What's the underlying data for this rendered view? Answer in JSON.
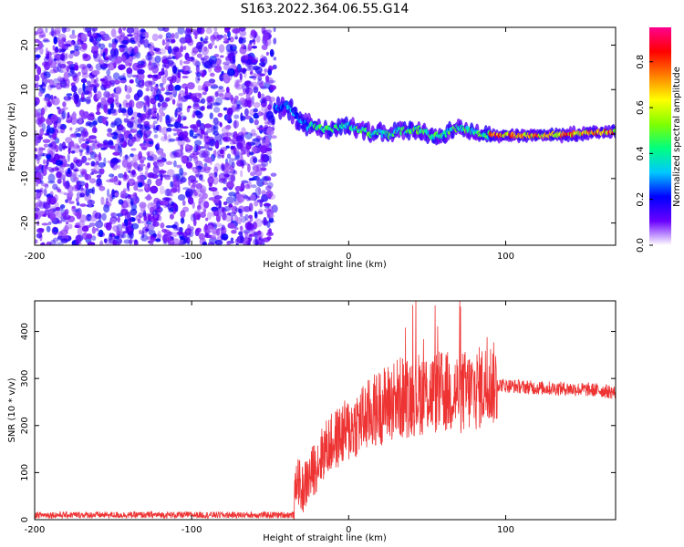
{
  "figure": {
    "title": "S163.2022.364.06.55.G14"
  },
  "chart_data": [
    {
      "type": "heatmap",
      "xlabel": "Height of straight line (km)",
      "ylabel": "Frequency (Hz)",
      "xlim": [
        -200,
        170
      ],
      "ylim": [
        -25,
        24
      ],
      "xticks": [
        -200,
        -100,
        0,
        100
      ],
      "yticks": [
        -20,
        -10,
        0,
        10,
        20
      ],
      "grid": false,
      "colorbar": {
        "label": "Normalized spectral amplitude",
        "range": [
          0,
          0.95
        ],
        "ticks": [
          0.0,
          0.2,
          0.4,
          0.6,
          0.8
        ],
        "colormap": [
          "#ffffff",
          "#6a00ff",
          "#0000ff",
          "#00c8ff",
          "#00ff80",
          "#80ff00",
          "#ffff00",
          "#ff8000",
          "#ff0000",
          "#ff0090"
        ]
      },
      "description_regions": {
        "noise_region_x": [
          -200,
          -47
        ],
        "signal_track": [
          [
            -47,
            5.5
          ],
          [
            -43,
            6.0
          ],
          [
            -39,
            6.5
          ],
          [
            -36,
            5.0
          ],
          [
            -33,
            3.5
          ],
          [
            -30,
            2.5
          ],
          [
            -26,
            2.0
          ],
          [
            -20,
            1.5
          ],
          [
            -14,
            1.0
          ],
          [
            -8,
            1.2
          ],
          [
            -3,
            1.8
          ],
          [
            0,
            2.0
          ],
          [
            5,
            1.0
          ],
          [
            10,
            0.8
          ],
          [
            15,
            0.0
          ],
          [
            20,
            0.5
          ],
          [
            26,
            -0.3
          ],
          [
            32,
            0.8
          ],
          [
            38,
            0.8
          ],
          [
            43,
            1.0
          ],
          [
            48,
            0.5
          ],
          [
            52,
            -0.5
          ],
          [
            57,
            -0.3
          ],
          [
            62,
            0.0
          ],
          [
            66,
            1.2
          ],
          [
            70,
            1.5
          ],
          [
            74,
            1.0
          ],
          [
            78,
            0.6
          ],
          [
            82,
            0.3
          ],
          [
            86,
            0.0
          ],
          [
            90,
            -0.2
          ],
          [
            95,
            -0.3
          ],
          [
            100,
            -0.3
          ],
          [
            110,
            -0.3
          ],
          [
            120,
            -0.3
          ],
          [
            130,
            -0.2
          ],
          [
            140,
            -0.1
          ],
          [
            150,
            0.2
          ],
          [
            160,
            0.4
          ],
          [
            170,
            0.5
          ]
        ]
      }
    },
    {
      "type": "line",
      "xlabel": "Height of straight line (km)",
      "ylabel": "SNR (10 * v/v)",
      "xlim": [
        -200,
        170
      ],
      "ylim": [
        0,
        465
      ],
      "xticks": [
        -200,
        -100,
        0,
        100
      ],
      "yticks": [
        0,
        100,
        200,
        300,
        400
      ],
      "grid": false,
      "series": [
        {
          "color": "#ee3333",
          "envelope": [
            [
              -200,
              10
            ],
            [
              -150,
              10
            ],
            [
              -100,
              10
            ],
            [
              -50,
              10
            ],
            [
              -35,
              10
            ],
            [
              -33,
              95
            ],
            [
              -30,
              60
            ],
            [
              -25,
              90
            ],
            [
              -20,
              120
            ],
            [
              -15,
              150
            ],
            [
              -10,
              165
            ],
            [
              -5,
              180
            ],
            [
              0,
              190
            ],
            [
              5,
              205
            ],
            [
              10,
              215
            ],
            [
              20,
              240
            ],
            [
              30,
              255
            ],
            [
              40,
              265
            ],
            [
              50,
              270
            ],
            [
              60,
              270
            ],
            [
              70,
              270
            ],
            [
              80,
              275
            ],
            [
              90,
              290
            ],
            [
              100,
              285
            ],
            [
              120,
              280
            ],
            [
              140,
              278
            ],
            [
              160,
              275
            ],
            [
              170,
              270
            ]
          ]
        }
      ]
    }
  ]
}
